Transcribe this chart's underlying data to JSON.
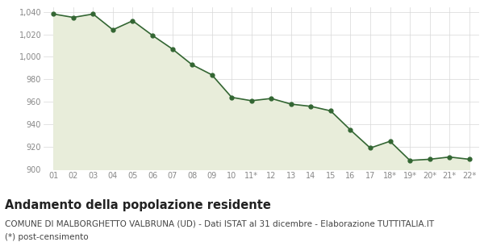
{
  "x_labels": [
    "01",
    "02",
    "03",
    "04",
    "05",
    "06",
    "07",
    "08",
    "09",
    "10",
    "11*",
    "12",
    "13",
    "14",
    "15",
    "16",
    "17",
    "18*",
    "19*",
    "20*",
    "21*",
    "22*"
  ],
  "y_values": [
    1038,
    1035,
    1038,
    1024,
    1032,
    1019,
    1007,
    993,
    984,
    964,
    961,
    963,
    958,
    956,
    952,
    935,
    919,
    925,
    908,
    909,
    911,
    909
  ],
  "line_color": "#336633",
  "fill_color": "#e8edda",
  "marker_color": "#336633",
  "plot_bg_color": "#ffffff",
  "figure_bg_color": "#ffffff",
  "grid_color": "#d8d8d8",
  "tick_color": "#888888",
  "ylim": [
    900,
    1044
  ],
  "yticks": [
    900,
    920,
    940,
    960,
    980,
    1000,
    1020,
    1040
  ],
  "title": "Andamento della popolazione residente",
  "subtitle": "COMUNE DI MALBORGHETTO VALBRUNA (UD) - Dati ISTAT al 31 dicembre - Elaborazione TUTTITALIA.IT",
  "footnote": "(*) post-censimento",
  "title_fontsize": 10.5,
  "subtitle_fontsize": 7.5,
  "footnote_fontsize": 7.5
}
